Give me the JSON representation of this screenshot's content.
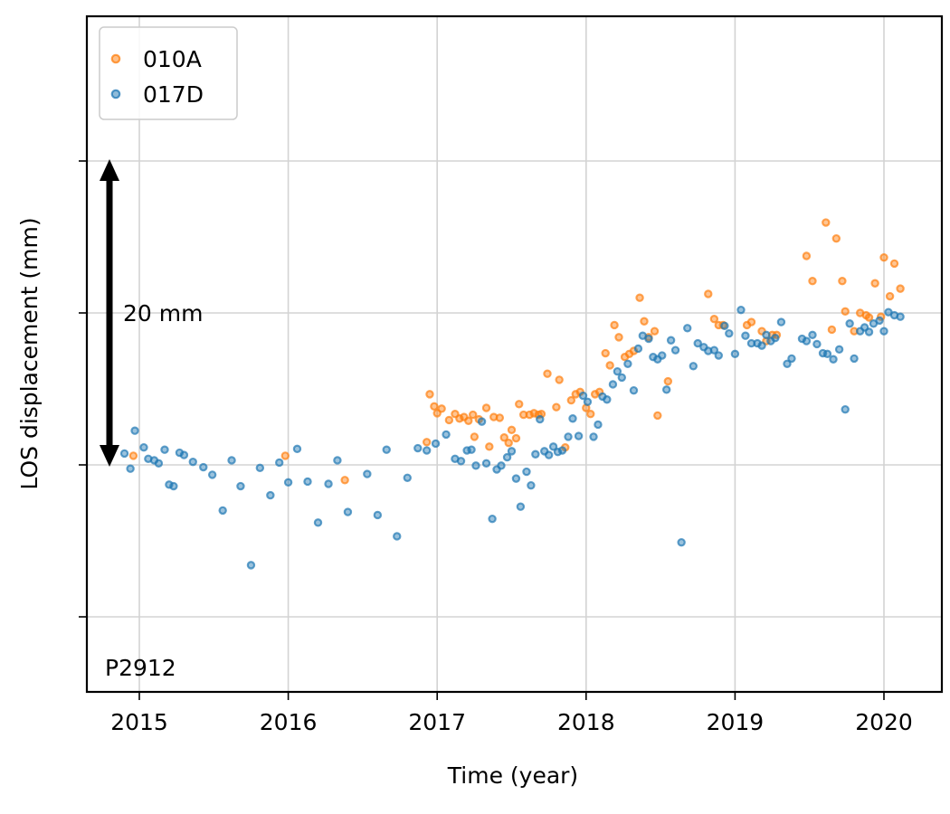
{
  "chart_data": {
    "type": "scatter",
    "xlabel": "Time (year)",
    "ylabel": "LOS displacement (mm)",
    "x_ticks": [
      2015,
      2016,
      2017,
      2018,
      2019,
      2020
    ],
    "xlim": [
      2014.67,
      2020.4
    ],
    "ylim": [
      -15,
      30
    ],
    "grid": true,
    "legend_position": "top-left",
    "station_label": "P2912",
    "scale_bar": {
      "label": "20 mm",
      "from": 0,
      "to": 20
    },
    "colors": {
      "010A": "#ff7f0e",
      "017D": "#1f77b4"
    },
    "series": [
      {
        "name": "010A",
        "color": "#ff7f0e",
        "points": [
          [
            2014.96,
            1.2
          ],
          [
            2015.98,
            1.2
          ],
          [
            2016.38,
            -2.0
          ],
          [
            2016.93,
            3.0
          ],
          [
            2016.95,
            9.3
          ],
          [
            2016.98,
            7.7
          ],
          [
            2017.0,
            6.8
          ],
          [
            2017.03,
            7.4
          ],
          [
            2017.08,
            5.9
          ],
          [
            2017.12,
            6.7
          ],
          [
            2017.15,
            6.1
          ],
          [
            2017.18,
            6.3
          ],
          [
            2017.21,
            5.8
          ],
          [
            2017.24,
            6.6
          ],
          [
            2017.25,
            3.7
          ],
          [
            2017.28,
            6.0
          ],
          [
            2017.33,
            7.5
          ],
          [
            2017.35,
            2.4
          ],
          [
            2017.38,
            6.3
          ],
          [
            2017.42,
            6.2
          ],
          [
            2017.45,
            3.6
          ],
          [
            2017.48,
            2.9
          ],
          [
            2017.5,
            4.6
          ],
          [
            2017.53,
            3.5
          ],
          [
            2017.55,
            8.0
          ],
          [
            2017.58,
            6.6
          ],
          [
            2017.62,
            6.6
          ],
          [
            2017.65,
            6.8
          ],
          [
            2017.68,
            6.6
          ],
          [
            2017.7,
            6.7
          ],
          [
            2017.74,
            12.0
          ],
          [
            2017.8,
            7.6
          ],
          [
            2017.82,
            11.2
          ],
          [
            2017.86,
            2.3
          ],
          [
            2017.9,
            8.5
          ],
          [
            2017.93,
            9.3
          ],
          [
            2017.96,
            9.6
          ],
          [
            2018.0,
            7.5
          ],
          [
            2018.03,
            6.7
          ],
          [
            2018.06,
            9.3
          ],
          [
            2018.09,
            9.6
          ],
          [
            2018.13,
            14.7
          ],
          [
            2018.16,
            13.1
          ],
          [
            2018.19,
            18.4
          ],
          [
            2018.22,
            16.8
          ],
          [
            2018.26,
            14.2
          ],
          [
            2018.29,
            14.6
          ],
          [
            2018.32,
            15.0
          ],
          [
            2018.36,
            22.0
          ],
          [
            2018.39,
            18.9
          ],
          [
            2018.42,
            16.8
          ],
          [
            2018.46,
            17.6
          ],
          [
            2018.48,
            6.5
          ],
          [
            2018.55,
            11.0
          ],
          [
            2018.82,
            22.5
          ],
          [
            2018.86,
            19.2
          ],
          [
            2018.89,
            18.4
          ],
          [
            2018.92,
            18.4
          ],
          [
            2019.08,
            18.4
          ],
          [
            2019.11,
            18.8
          ],
          [
            2019.18,
            17.6
          ],
          [
            2019.21,
            16.3
          ],
          [
            2019.25,
            17.1
          ],
          [
            2019.28,
            17.1
          ],
          [
            2019.48,
            27.5
          ],
          [
            2019.52,
            24.2
          ],
          [
            2019.61,
            31.9
          ],
          [
            2019.65,
            17.8
          ],
          [
            2019.68,
            29.8
          ],
          [
            2019.72,
            24.2
          ],
          [
            2019.74,
            20.2
          ],
          [
            2019.8,
            17.6
          ],
          [
            2019.84,
            20.0
          ],
          [
            2019.88,
            19.7
          ],
          [
            2019.9,
            19.4
          ],
          [
            2019.94,
            23.9
          ],
          [
            2019.98,
            19.5
          ],
          [
            2020.0,
            27.3
          ],
          [
            2020.04,
            22.2
          ],
          [
            2020.07,
            26.5
          ],
          [
            2020.11,
            23.2
          ]
        ]
      },
      {
        "name": "017D",
        "color": "#1f77b4",
        "points": [
          [
            2014.9,
            1.5
          ],
          [
            2014.94,
            -0.5
          ],
          [
            2014.97,
            4.5
          ],
          [
            2015.03,
            2.3
          ],
          [
            2015.06,
            0.8
          ],
          [
            2015.1,
            0.6
          ],
          [
            2015.13,
            0.2
          ],
          [
            2015.17,
            2.0
          ],
          [
            2015.2,
            -2.6
          ],
          [
            2015.23,
            -2.8
          ],
          [
            2015.27,
            1.6
          ],
          [
            2015.3,
            1.3
          ],
          [
            2015.36,
            0.4
          ],
          [
            2015.43,
            -0.3
          ],
          [
            2015.49,
            -1.3
          ],
          [
            2015.56,
            -6.0
          ],
          [
            2015.62,
            0.6
          ],
          [
            2015.68,
            -2.8
          ],
          [
            2015.75,
            -13.2
          ],
          [
            2015.81,
            -0.4
          ],
          [
            2015.88,
            -4.0
          ],
          [
            2015.94,
            0.3
          ],
          [
            2016.0,
            -2.3
          ],
          [
            2016.06,
            2.1
          ],
          [
            2016.13,
            -2.2
          ],
          [
            2016.2,
            -7.6
          ],
          [
            2016.27,
            -2.5
          ],
          [
            2016.33,
            0.6
          ],
          [
            2016.4,
            -6.2
          ],
          [
            2016.53,
            -1.2
          ],
          [
            2016.6,
            -6.6
          ],
          [
            2016.66,
            2.0
          ],
          [
            2016.73,
            -9.4
          ],
          [
            2016.8,
            -1.7
          ],
          [
            2016.87,
            2.2
          ],
          [
            2016.93,
            1.9
          ],
          [
            2016.99,
            2.8
          ],
          [
            2017.06,
            4.0
          ],
          [
            2017.12,
            0.8
          ],
          [
            2017.16,
            0.5
          ],
          [
            2017.2,
            1.9
          ],
          [
            2017.23,
            2.0
          ],
          [
            2017.26,
            -0.1
          ],
          [
            2017.3,
            5.7
          ],
          [
            2017.33,
            0.2
          ],
          [
            2017.37,
            -7.1
          ],
          [
            2017.4,
            -0.6
          ],
          [
            2017.43,
            -0.1
          ],
          [
            2017.47,
            1.0
          ],
          [
            2017.5,
            1.8
          ],
          [
            2017.53,
            -1.8
          ],
          [
            2017.56,
            -5.5
          ],
          [
            2017.6,
            -0.9
          ],
          [
            2017.63,
            -2.7
          ],
          [
            2017.66,
            1.4
          ],
          [
            2017.69,
            6.0
          ],
          [
            2017.72,
            1.8
          ],
          [
            2017.75,
            1.3
          ],
          [
            2017.78,
            2.4
          ],
          [
            2017.81,
            1.7
          ],
          [
            2017.84,
            1.9
          ],
          [
            2017.88,
            3.7
          ],
          [
            2017.91,
            6.1
          ],
          [
            2017.95,
            3.8
          ],
          [
            2017.98,
            9.1
          ],
          [
            2018.01,
            8.3
          ],
          [
            2018.05,
            3.7
          ],
          [
            2018.08,
            5.3
          ],
          [
            2018.11,
            9.0
          ],
          [
            2018.14,
            8.6
          ],
          [
            2018.18,
            10.6
          ],
          [
            2018.21,
            12.3
          ],
          [
            2018.24,
            11.5
          ],
          [
            2018.28,
            13.3
          ],
          [
            2018.32,
            9.8
          ],
          [
            2018.35,
            15.3
          ],
          [
            2018.38,
            17.0
          ],
          [
            2018.42,
            16.6
          ],
          [
            2018.45,
            14.2
          ],
          [
            2018.48,
            13.9
          ],
          [
            2018.51,
            14.4
          ],
          [
            2018.54,
            9.9
          ],
          [
            2018.57,
            16.4
          ],
          [
            2018.6,
            15.1
          ],
          [
            2018.64,
            -10.2
          ],
          [
            2018.68,
            18.0
          ],
          [
            2018.72,
            13.0
          ],
          [
            2018.75,
            16.0
          ],
          [
            2018.79,
            15.5
          ],
          [
            2018.82,
            15.0
          ],
          [
            2018.86,
            15.1
          ],
          [
            2018.89,
            14.4
          ],
          [
            2018.93,
            18.3
          ],
          [
            2018.96,
            17.3
          ],
          [
            2019.0,
            14.6
          ],
          [
            2019.04,
            20.4
          ],
          [
            2019.07,
            17.0
          ],
          [
            2019.11,
            16.0
          ],
          [
            2019.15,
            16.0
          ],
          [
            2019.18,
            15.7
          ],
          [
            2019.21,
            17.1
          ],
          [
            2019.24,
            16.3
          ],
          [
            2019.27,
            16.7
          ],
          [
            2019.31,
            18.8
          ],
          [
            2019.35,
            13.3
          ],
          [
            2019.38,
            14.0
          ],
          [
            2019.45,
            16.6
          ],
          [
            2019.48,
            16.3
          ],
          [
            2019.52,
            17.1
          ],
          [
            2019.55,
            15.9
          ],
          [
            2019.59,
            14.7
          ],
          [
            2019.62,
            14.6
          ],
          [
            2019.66,
            13.9
          ],
          [
            2019.7,
            15.2
          ],
          [
            2019.74,
            7.3
          ],
          [
            2019.77,
            18.6
          ],
          [
            2019.8,
            14.0
          ],
          [
            2019.84,
            17.6
          ],
          [
            2019.87,
            18.1
          ],
          [
            2019.9,
            17.5
          ],
          [
            2019.93,
            18.6
          ],
          [
            2019.97,
            19.0
          ],
          [
            2020.0,
            17.6
          ],
          [
            2020.03,
            20.1
          ],
          [
            2020.07,
            19.7
          ],
          [
            2020.11,
            19.5
          ]
        ]
      }
    ]
  }
}
